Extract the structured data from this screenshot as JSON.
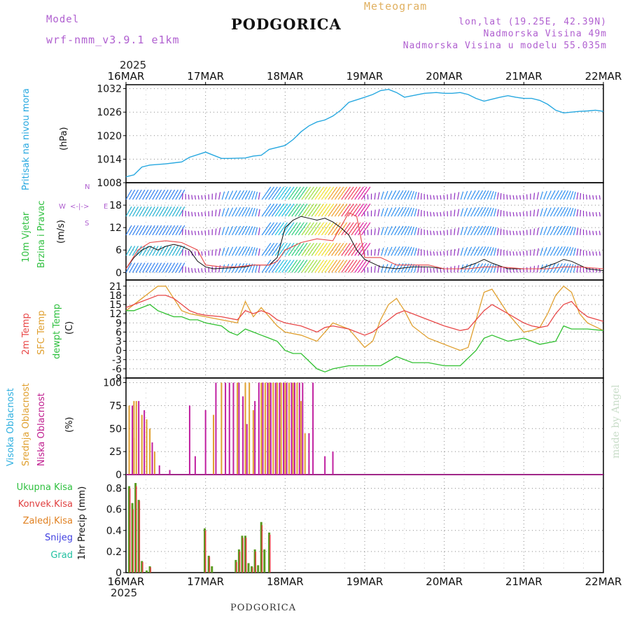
{
  "header": {
    "model_label": "Model",
    "model_name": "wrf-nmm_v3.9.1 e1km",
    "title": "PODGORICA",
    "meteogram_label": "Meteogram",
    "coords": "lon,lat (19.25E, 42.39N)",
    "altitude": "Nadmorska Visina 49m",
    "model_altitude": "Nadmorska Visina u modelu 55.035m",
    "year": "2025",
    "footer": "PODGORICA",
    "credit": "made by Angel"
  },
  "colors": {
    "pressure": "#27a8e0",
    "temp2m": "#e84848",
    "sfc_temp": "#e0a030",
    "dewpoint": "#30c030",
    "high_cloud": "#30b0e0",
    "mid_cloud": "#e0a030",
    "low_cloud": "#c020a0",
    "precip_total": "#5a9a20",
    "precip_conv": "#e04040",
    "frozen": "#e08020",
    "snow": "#4040e0",
    "hail": "#20c0a0",
    "wind_label": "#30c040",
    "purple": "#b060d0"
  },
  "chart_data": [
    {
      "id": "pressure",
      "type": "line",
      "ylabel": [
        "Pritisak na nivou mora",
        "(hPa)"
      ],
      "ylim": [
        1008,
        1033
      ],
      "yticks": [
        1008,
        1014,
        1020,
        1026,
        1032
      ],
      "x_unit": "days since 16MAR 00UTC",
      "x_ticks": [
        "16MAR",
        "17MAR",
        "18MAR",
        "19MAR",
        "20MAR",
        "21MAR",
        "22MAR"
      ],
      "grid": true,
      "series": [
        {
          "name": "Pritisak na nivou mora",
          "x": [
            0,
            0.1,
            0.2,
            0.3,
            0.5,
            0.7,
            0.8,
            1.0,
            1.1,
            1.2,
            1.3,
            1.5,
            1.6,
            1.7,
            1.8,
            2.0,
            2.1,
            2.2,
            2.3,
            2.4,
            2.5,
            2.6,
            2.7,
            2.8,
            3.0,
            3.1,
            3.2,
            3.3,
            3.4,
            3.5,
            3.6,
            3.75,
            3.9,
            4.0,
            4.1,
            4.2,
            4.3,
            4.4,
            4.5,
            4.6,
            4.7,
            4.8,
            4.9,
            5.0,
            5.1,
            5.2,
            5.3,
            5.4,
            5.5,
            5.6,
            5.7,
            5.8,
            5.9,
            6.0
          ],
          "values": [
            1009.5,
            1010,
            1012,
            1012.5,
            1012.8,
            1013.3,
            1014.5,
            1015.8,
            1015,
            1014.2,
            1014.2,
            1014.3,
            1014.8,
            1015,
            1016.5,
            1017.5,
            1019,
            1021,
            1022.5,
            1023.5,
            1024,
            1025,
            1026.5,
            1028.5,
            1029.8,
            1030.5,
            1031.5,
            1031.8,
            1031,
            1029.8,
            1030.2,
            1030.8,
            1031,
            1030.8,
            1030.8,
            1031,
            1030.5,
            1029.5,
            1028.8,
            1029.3,
            1029.8,
            1030.2,
            1029.8,
            1029.5,
            1029.5,
            1029,
            1028,
            1026.5,
            1025.8,
            1026,
            1026.2,
            1026.3,
            1026.5,
            1026.2
          ]
        }
      ]
    },
    {
      "id": "wind",
      "type": "line",
      "ylabel": [
        "10m Vjetar",
        "Brzina i Pravac",
        "(m/s)"
      ],
      "ylim": [
        -2,
        24
      ],
      "yticks": [
        0,
        6,
        12,
        18
      ],
      "compass": {
        "n": "N",
        "s": "S",
        "e": "E",
        "w": "W",
        "arrows": "<-|->"
      },
      "grid": true,
      "series": [
        {
          "name": "10m Vjetar",
          "x": [
            0,
            0.1,
            0.2,
            0.3,
            0.4,
            0.5,
            0.6,
            0.7,
            0.8,
            0.9,
            1.0,
            1.1,
            1.3,
            1.5,
            1.6,
            1.7,
            1.8,
            1.85,
            1.9,
            2.0,
            2.1,
            2.2,
            2.3,
            2.4,
            2.5,
            2.6,
            2.7,
            2.8,
            2.9,
            3.0,
            3.2,
            3.4,
            3.6,
            3.8,
            4.0,
            4.2,
            4.4,
            4.5,
            4.6,
            4.8,
            5.0,
            5.2,
            5.4,
            5.5,
            5.6,
            5.8,
            6.0
          ],
          "values": [
            1,
            4,
            6,
            7,
            6,
            7,
            7.5,
            7,
            6,
            3,
            1.5,
            1,
            1.2,
            1.5,
            2,
            2,
            2,
            3,
            4,
            12,
            14,
            15,
            14.5,
            14,
            14.5,
            13.5,
            12,
            10,
            6,
            3.5,
            1.5,
            1,
            1.5,
            1.5,
            1,
            1,
            2.5,
            3.5,
            2.5,
            1,
            1,
            1,
            2.5,
            3.5,
            3,
            1,
            0.5
          ]
        },
        {
          "name": "gust",
          "x": [
            0,
            0.15,
            0.3,
            0.5,
            0.7,
            0.9,
            1.0,
            1.2,
            1.4,
            1.6,
            1.8,
            1.9,
            2.0,
            2.2,
            2.4,
            2.6,
            2.8,
            2.9,
            3.0,
            3.2,
            3.4,
            3.6,
            3.8,
            4.0,
            4.3,
            4.5,
            4.7,
            5.0,
            5.3,
            5.5,
            5.7,
            6.0
          ],
          "values": [
            1,
            6,
            8,
            8.5,
            8,
            6,
            2,
            1.5,
            1.5,
            2,
            2,
            3,
            6,
            8,
            9,
            8.5,
            16,
            15,
            4,
            4,
            2,
            2,
            2,
            1,
            1,
            1.5,
            1.5,
            1,
            1,
            1.5,
            1.5,
            1
          ]
        }
      ]
    },
    {
      "id": "temperature",
      "type": "line",
      "ylabel": [
        "2m Temp",
        "SFC Temp",
        "dewpt Temp",
        "(C)"
      ],
      "ylim": [
        -9,
        23
      ],
      "yticks": [
        -9,
        -6,
        -3,
        0,
        3,
        6,
        9,
        12,
        15,
        18,
        21
      ],
      "grid": true,
      "series": [
        {
          "name": "2m Temp",
          "x": [
            0,
            0.1,
            0.2,
            0.3,
            0.4,
            0.5,
            0.6,
            0.7,
            0.8,
            0.9,
            1.0,
            1.2,
            1.4,
            1.5,
            1.6,
            1.7,
            1.8,
            1.9,
            2.0,
            2.2,
            2.4,
            2.5,
            2.6,
            2.8,
            3.0,
            3.1,
            3.2,
            3.3,
            3.4,
            3.5,
            3.6,
            3.8,
            4.0,
            4.2,
            4.3,
            4.4,
            4.5,
            4.6,
            4.8,
            5.0,
            5.1,
            5.2,
            5.3,
            5.4,
            5.5,
            5.6,
            5.7,
            5.8,
            6.0
          ],
          "values": [
            14,
            15,
            16,
            17,
            18,
            18,
            17,
            15,
            13,
            12,
            11.5,
            11,
            10,
            13,
            12,
            13,
            12,
            10,
            9,
            8,
            6,
            7.5,
            8,
            7,
            5,
            6,
            8,
            10,
            12,
            13,
            12,
            10,
            8,
            6.5,
            7,
            10,
            13,
            15,
            12,
            9,
            8,
            7.5,
            8,
            12,
            15,
            16,
            13,
            11,
            9.5
          ]
        },
        {
          "name": "SFC Temp",
          "x": [
            0,
            0.1,
            0.2,
            0.3,
            0.4,
            0.5,
            0.6,
            0.7,
            0.8,
            0.9,
            1.0,
            1.2,
            1.4,
            1.5,
            1.6,
            1.7,
            1.8,
            1.9,
            2.0,
            2.2,
            2.4,
            2.5,
            2.6,
            2.8,
            3.0,
            3.1,
            3.2,
            3.3,
            3.4,
            3.5,
            3.6,
            3.8,
            4.0,
            4.2,
            4.3,
            4.4,
            4.5,
            4.6,
            4.8,
            5.0,
            5.1,
            5.2,
            5.3,
            5.4,
            5.5,
            5.6,
            5.7,
            5.8,
            6.0
          ],
          "values": [
            13,
            15,
            17,
            19,
            21,
            21,
            17,
            13,
            12,
            11.5,
            11,
            10,
            9,
            16,
            11,
            14,
            11,
            8,
            6,
            5,
            3,
            6,
            9,
            7,
            1,
            3,
            10,
            15,
            17,
            13,
            8,
            4,
            2,
            0,
            1,
            10,
            19,
            20,
            12,
            6,
            6.5,
            7.5,
            12,
            18,
            21,
            19,
            12,
            9,
            6.5
          ]
        },
        {
          "name": "dewpt Temp",
          "x": [
            0,
            0.1,
            0.2,
            0.3,
            0.4,
            0.5,
            0.6,
            0.7,
            0.8,
            0.9,
            1.0,
            1.2,
            1.3,
            1.4,
            1.5,
            1.6,
            1.7,
            1.8,
            1.9,
            2.0,
            2.1,
            2.2,
            2.4,
            2.5,
            2.6,
            2.8,
            3.0,
            3.2,
            3.4,
            3.5,
            3.6,
            3.8,
            4.0,
            4.2,
            4.4,
            4.5,
            4.6,
            4.8,
            5.0,
            5.2,
            5.4,
            5.5,
            5.6,
            5.8,
            6.0
          ],
          "values": [
            13,
            13,
            14,
            15,
            13,
            12,
            11,
            11,
            10,
            10,
            9,
            8,
            6,
            5,
            7,
            6,
            5,
            4,
            3,
            0,
            -1,
            -1,
            -6,
            -7,
            -6,
            -5,
            -5,
            -5,
            -2,
            -3,
            -4,
            -4,
            -5,
            -5,
            0,
            4,
            5,
            3,
            4,
            2,
            3,
            8,
            7,
            7,
            6.5
          ]
        }
      ]
    },
    {
      "id": "cloud",
      "type": "bar",
      "ylabel": [
        "Visoka Oblacnost",
        "Srednja Oblacnost",
        "Niska Oblacnost",
        "(%)"
      ],
      "ylim": [
        0,
        105
      ],
      "yticks": [
        0,
        25,
        50,
        75,
        100
      ],
      "grid": true,
      "series": [
        {
          "name": "Srednja Oblacnost",
          "x": [
            0.04,
            0.1,
            0.13,
            0.2,
            0.26,
            0.3,
            0.36,
            0.1,
            1.1,
            1.2,
            1.4,
            1.5,
            1.55,
            1.6,
            1.7,
            1.75,
            1.8,
            1.85,
            1.9,
            1.95,
            2.0,
            2.05,
            2.1,
            2.15,
            2.2,
            2.25,
            2.3
          ],
          "values": [
            75,
            80,
            80,
            65,
            60,
            50,
            25,
            40,
            65,
            100,
            100,
            100,
            100,
            70,
            100,
            100,
            100,
            100,
            100,
            100,
            100,
            100,
            100,
            100,
            80,
            45,
            10
          ]
        },
        {
          "name": "Niska Oblacnost",
          "x": [
            0.08,
            0.16,
            0.23,
            0.33,
            0.42,
            0.55,
            0.8,
            0.87,
            1.0,
            1.13,
            1.25,
            1.3,
            1.35,
            1.42,
            1.47,
            1.52,
            1.62,
            1.67,
            1.72,
            1.78,
            1.82,
            1.88,
            1.93,
            1.98,
            2.02,
            2.08,
            2.12,
            2.18,
            2.22,
            2.3,
            2.35,
            2.5,
            2.6
          ],
          "values": [
            75,
            80,
            70,
            35,
            10,
            5,
            75,
            20,
            70,
            100,
            100,
            100,
            100,
            100,
            85,
            55,
            80,
            100,
            100,
            100,
            100,
            100,
            100,
            100,
            100,
            100,
            100,
            100,
            100,
            45,
            100,
            20,
            25
          ]
        }
      ]
    },
    {
      "id": "precip",
      "type": "bar",
      "ylabel": [
        "1hr Precip (mm)"
      ],
      "ylim": [
        0,
        0.93
      ],
      "yticks": [
        0,
        0.2,
        0.4,
        0.6,
        0.8
      ],
      "x_ticks": [
        "16MAR",
        "17MAR",
        "18MAR",
        "19MAR",
        "20MAR",
        "21MAR",
        "22MAR"
      ],
      "legend": [
        "Ukupna Kisa",
        "Konvek.Kisa",
        "Zaledj.Kisa",
        "Snijeg",
        "Grad"
      ],
      "grid": true,
      "series": [
        {
          "name": "Ukupna Kisa",
          "x": [
            0.04,
            0.08,
            0.12,
            0.16,
            0.2,
            0.26,
            0.3,
            0.99,
            1.04,
            1.08,
            1.38,
            1.42,
            1.46,
            1.5,
            1.54,
            1.58,
            1.62,
            1.66,
            1.7,
            1.74,
            1.8
          ],
          "values": [
            0.82,
            0.66,
            0.85,
            0.69,
            0.11,
            0.02,
            0.06,
            0.42,
            0.16,
            0.06,
            0.12,
            0.22,
            0.35,
            0.35,
            0.09,
            0.06,
            0.22,
            0.07,
            0.48,
            0.22,
            0.38
          ]
        },
        {
          "name": "Konvek.Kisa",
          "x": [
            0.05,
            0.09,
            0.13,
            0.17,
            0.21,
            0.31,
            1.0,
            1.05,
            1.39,
            1.43,
            1.47,
            1.51,
            1.59,
            1.63,
            1.71,
            1.81
          ],
          "values": [
            0.8,
            0.6,
            0.82,
            0.68,
            0.1,
            0.05,
            0.4,
            0.15,
            0.1,
            0.2,
            0.33,
            0.33,
            0.05,
            0.2,
            0.45,
            0.36
          ]
        }
      ]
    }
  ]
}
